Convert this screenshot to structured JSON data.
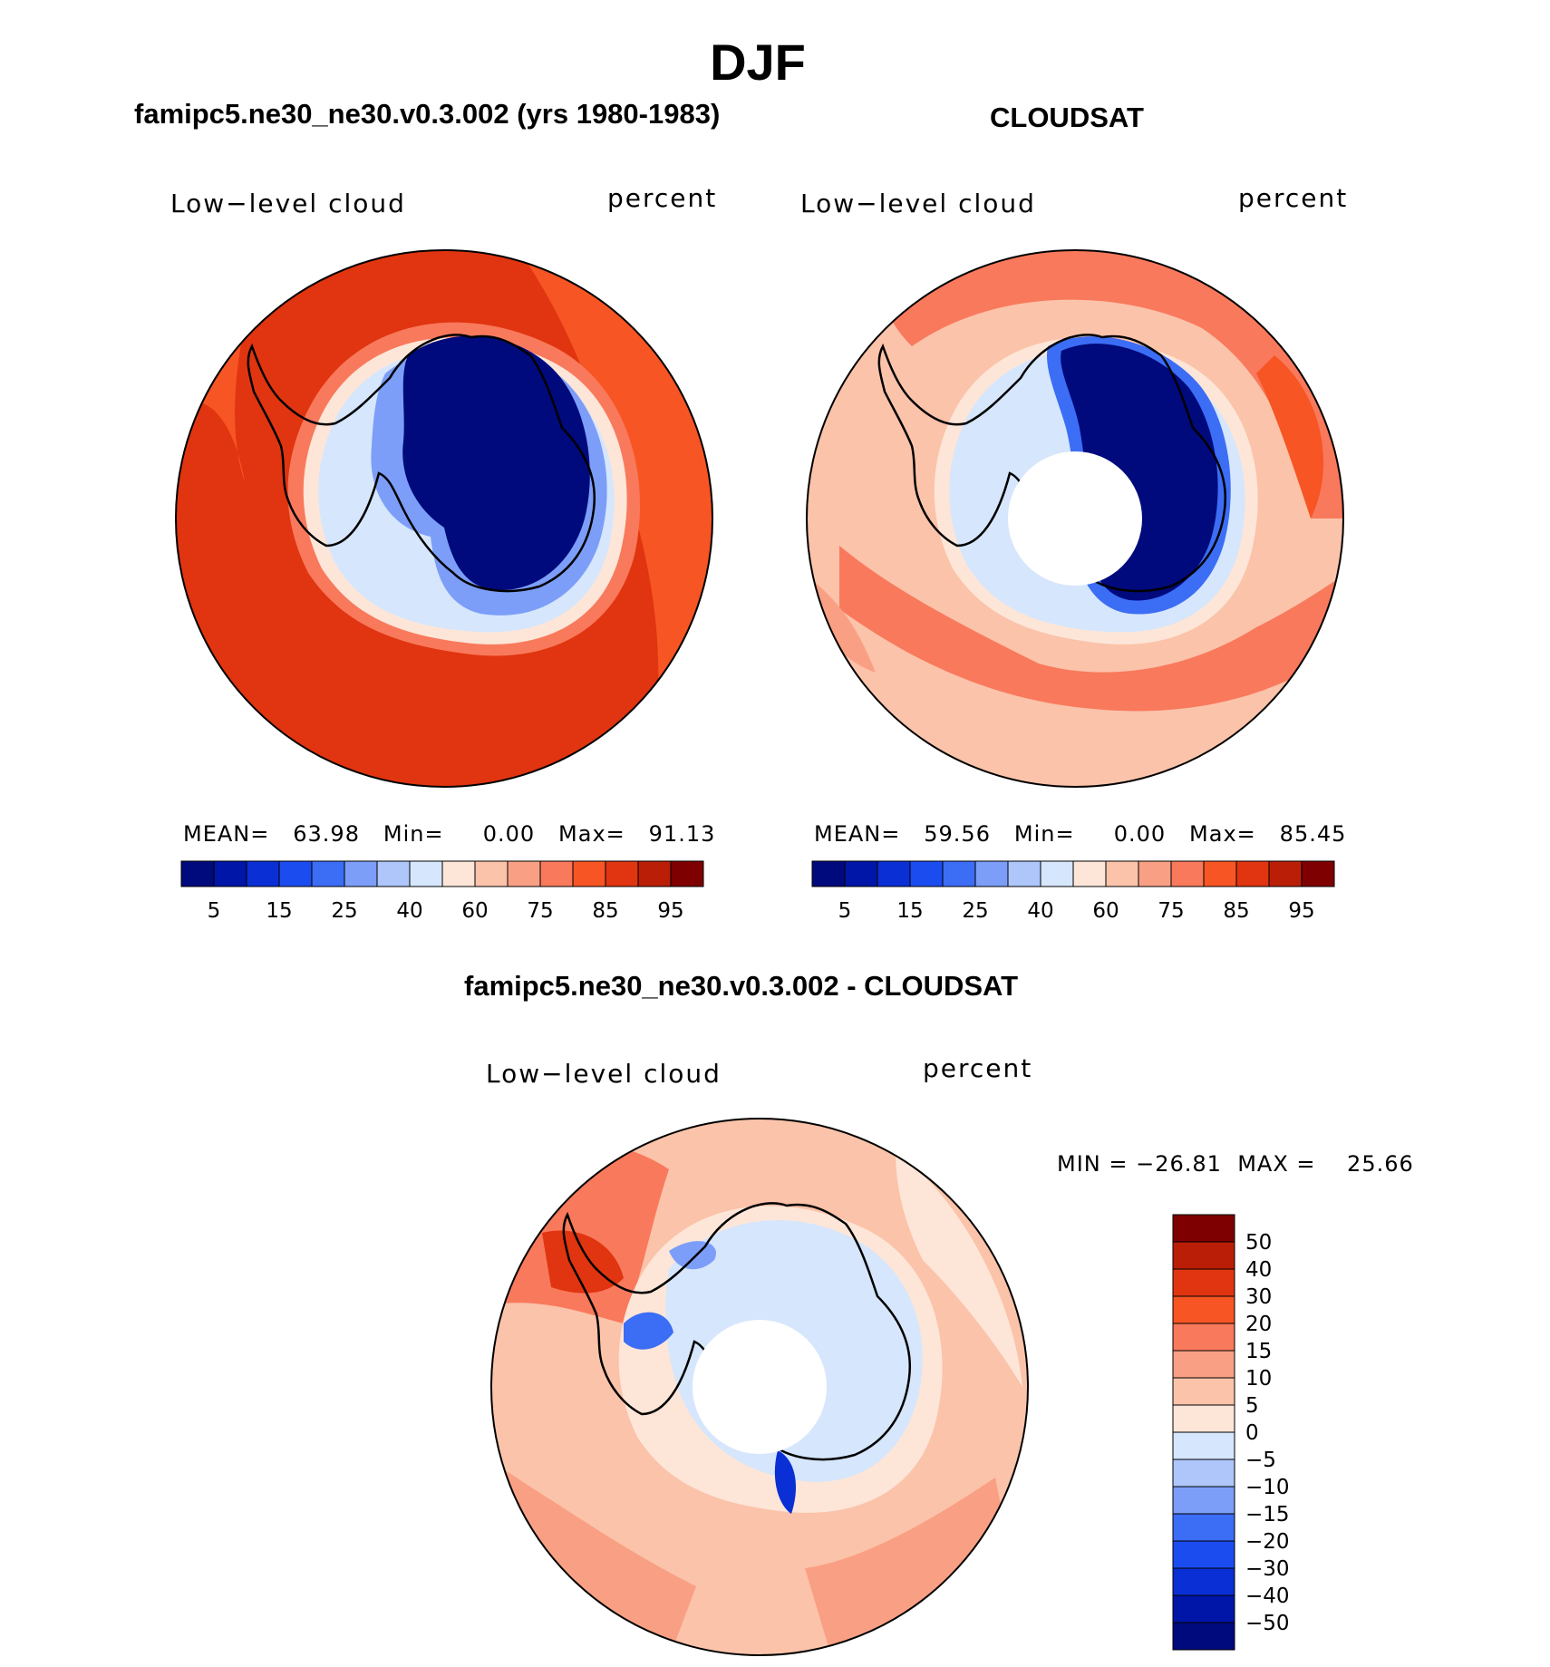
{
  "page": {
    "title": "DJF",
    "title_left": "famipc5.ne30_ne30.v0.3.002 (yrs 1980-1983)",
    "title_right": "CLOUDSAT",
    "title_diff": "famipc5.ne30_ne30.v0.3.002 - CLOUDSAT"
  },
  "colors": {
    "coastline": "#000000",
    "ocean_high": "#e03510",
    "ocean_mid": "#f9795c",
    "ice_low": "#000a7c",
    "missing": "#ffffff"
  },
  "chart_data": [
    {
      "type": "heatmap",
      "projection": "south-polar-stereographic",
      "field_label": "Low−level cloud",
      "units_label": "percent",
      "stats": {
        "mean_label": "MEAN=",
        "mean": "63.98",
        "min_label": "Min=",
        "min": "0.00",
        "max_label": "Max=",
        "max": "91.13"
      },
      "colorbar": {
        "orientation": "horizontal",
        "tick_labels": [
          "5",
          "15",
          "25",
          "40",
          "60",
          "75",
          "85",
          "95"
        ],
        "colors": [
          "#000a7c",
          "#0016a8",
          "#0a2fd4",
          "#1b4cf0",
          "#3c6df5",
          "#7c9ef8",
          "#aec6fa",
          "#d6e6fc",
          "#fde6d8",
          "#fbc3aa",
          "#f9a084",
          "#f9795c",
          "#f75524",
          "#e03510",
          "#bb1e06",
          "#7f0000"
        ]
      }
    },
    {
      "type": "heatmap",
      "projection": "south-polar-stereographic",
      "field_label": "Low−level cloud",
      "units_label": "percent",
      "stats": {
        "mean_label": "MEAN=",
        "mean": "59.56",
        "min_label": "Min=",
        "min": "0.00",
        "max_label": "Max=",
        "max": "85.45"
      },
      "colorbar": {
        "orientation": "horizontal",
        "tick_labels": [
          "5",
          "15",
          "25",
          "40",
          "60",
          "75",
          "85",
          "95"
        ],
        "colors": [
          "#000a7c",
          "#0016a8",
          "#0a2fd4",
          "#1b4cf0",
          "#3c6df5",
          "#7c9ef8",
          "#aec6fa",
          "#d6e6fc",
          "#fde6d8",
          "#fbc3aa",
          "#f9a084",
          "#f9795c",
          "#f75524",
          "#e03510",
          "#bb1e06",
          "#7f0000"
        ]
      }
    },
    {
      "type": "heatmap",
      "projection": "south-polar-stereographic",
      "field_label": "Low−level cloud",
      "units_label": "percent",
      "stats": {
        "min_label": "MIN =",
        "min": "−26.81",
        "max_label": "MAX =",
        "max": "25.66"
      },
      "colorbar": {
        "orientation": "vertical",
        "tick_labels": [
          "50",
          "40",
          "30",
          "20",
          "15",
          "10",
          "5",
          "0",
          "−5",
          "−10",
          "−15",
          "−20",
          "−30",
          "−40",
          "−50"
        ],
        "colors": [
          "#7f0000",
          "#bb1e06",
          "#e03510",
          "#f75524",
          "#f9795c",
          "#f9a084",
          "#fbc3aa",
          "#fde6d8",
          "#d6e6fc",
          "#aec6fa",
          "#7c9ef8",
          "#3c6df5",
          "#1b4cf0",
          "#0a2fd4",
          "#0016a8",
          "#000a7c"
        ]
      }
    }
  ]
}
